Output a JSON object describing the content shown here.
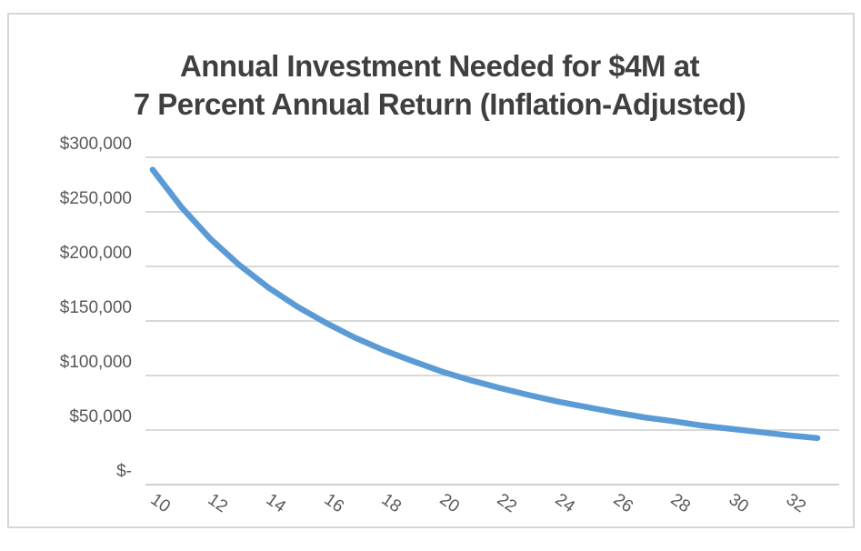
{
  "chart": {
    "title_line1": "Annual Investment Needed for $4M at",
    "title_line2": "7 Percent Annual Return (Inflation-Adjusted)"
  },
  "chart_data": {
    "type": "line",
    "title": "Annual Investment Needed for $4M at 7 Percent Annual Return (Inflation-Adjusted)",
    "x": [
      10,
      11,
      12,
      13,
      14,
      15,
      16,
      17,
      18,
      19,
      20,
      21,
      22,
      23,
      24,
      25,
      26,
      27,
      28,
      29,
      30,
      31,
      32,
      33
    ],
    "values": [
      277000,
      242500,
      213500,
      189500,
      169000,
      151500,
      136500,
      123000,
      111500,
      101500,
      92000,
      84000,
      77000,
      70500,
      64500,
      59500,
      54500,
      50000,
      46500,
      42500,
      39500,
      36500,
      33500,
      31000
    ],
    "series_name": "Annual Investment Needed",
    "xlabel": "",
    "ylabel": "",
    "x_tick_labels": [
      "10",
      "12",
      "14",
      "16",
      "18",
      "20",
      "22",
      "24",
      "26",
      "28",
      "30",
      "32"
    ],
    "y_tick_labels": [
      "$300,000",
      "$250,000",
      "$200,000",
      "$150,000",
      "$100,000",
      "$50,000",
      "$-"
    ],
    "ylim": [
      0,
      300000
    ],
    "y_tick_step": 50000,
    "grid": true,
    "legend": false,
    "line_color": "#5B9BD5",
    "gridline_color": "#d9d9d9",
    "label_color": "#595959",
    "title_color": "#3f3f3f"
  }
}
